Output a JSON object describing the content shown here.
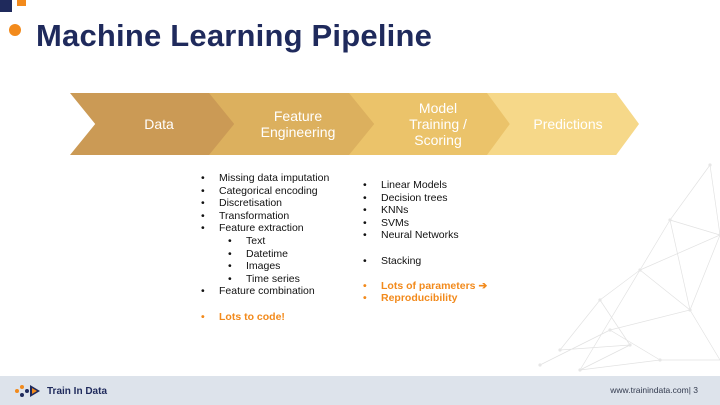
{
  "title": "Machine Learning Pipeline",
  "pipeline": [
    {
      "label": "Data"
    },
    {
      "label": "Feature Engineering"
    },
    {
      "label": "Model Training / Scoring"
    },
    {
      "label": "Predictions"
    }
  ],
  "feature_engineering_list": {
    "items": [
      "Missing data imputation",
      "Categorical encoding",
      "Discretisation",
      "Transformation",
      "Feature extraction"
    ],
    "sub_items": [
      "Text",
      "Datetime",
      "Images",
      "Time series"
    ],
    "last_item": "Feature combination",
    "highlight": "Lots to code!"
  },
  "model_list": {
    "items": [
      "Linear Models",
      "Decision trees",
      "KNNs",
      "SVMs",
      "Neural Networks"
    ],
    "extra": "Stacking",
    "highlight_line1": "Lots of parameters ➔",
    "highlight_line2": "Reproducibility"
  },
  "footer": {
    "logo_text": "Train In Data",
    "site": "www.trainindata.com| 3"
  },
  "colors": {
    "title": "#1f2a5c",
    "accent": "#f28a1c",
    "arrow1": "#cb9a55",
    "arrow2": "#dcb05e",
    "arrow3": "#ebc36a",
    "arrow4": "#f6d889"
  }
}
